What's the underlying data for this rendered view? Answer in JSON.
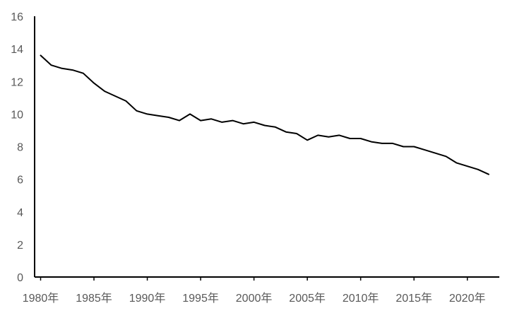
{
  "chart_data": {
    "type": "line",
    "title": "",
    "xlabel": "",
    "ylabel": "",
    "ylim": [
      0,
      16
    ],
    "y_ticks": [
      0,
      2,
      4,
      6,
      8,
      10,
      12,
      14,
      16
    ],
    "y_tick_labels": [
      "0",
      "2",
      "4",
      "6",
      "8",
      "10",
      "12",
      "14",
      "16"
    ],
    "x_range": [
      1980,
      2023
    ],
    "x_ticks": [
      1980,
      1985,
      1990,
      1995,
      2000,
      2005,
      2010,
      2015,
      2020
    ],
    "x_tick_labels": [
      "1980年",
      "1985年",
      "1990年",
      "1995年",
      "2000年",
      "2005年",
      "2010年",
      "2015年",
      "2020年"
    ],
    "grid": false,
    "legend": "none",
    "series": [
      {
        "x": [
          1980,
          1981,
          1982,
          1983,
          1984,
          1985,
          1986,
          1987,
          1988,
          1989,
          1990,
          1991,
          1992,
          1993,
          1994,
          1995,
          1996,
          1997,
          1998,
          1999,
          2000,
          2001,
          2002,
          2003,
          2004,
          2005,
          2006,
          2007,
          2008,
          2009,
          2010,
          2011,
          2012,
          2013,
          2014,
          2015,
          2016,
          2017,
          2018,
          2019,
          2020,
          2021,
          2022
        ],
        "values": [
          13.6,
          13.0,
          12.8,
          12.7,
          12.5,
          11.9,
          11.4,
          11.1,
          10.8,
          10.2,
          10.0,
          9.9,
          9.8,
          9.6,
          10.0,
          9.6,
          9.7,
          9.5,
          9.6,
          9.4,
          9.5,
          9.3,
          9.2,
          8.9,
          8.8,
          8.4,
          8.7,
          8.6,
          8.7,
          8.5,
          8.5,
          8.3,
          8.2,
          8.2,
          8.0,
          8.0,
          7.8,
          7.6,
          7.4,
          7.0,
          6.8,
          6.6,
          6.3
        ],
        "color": "#000000"
      }
    ]
  }
}
